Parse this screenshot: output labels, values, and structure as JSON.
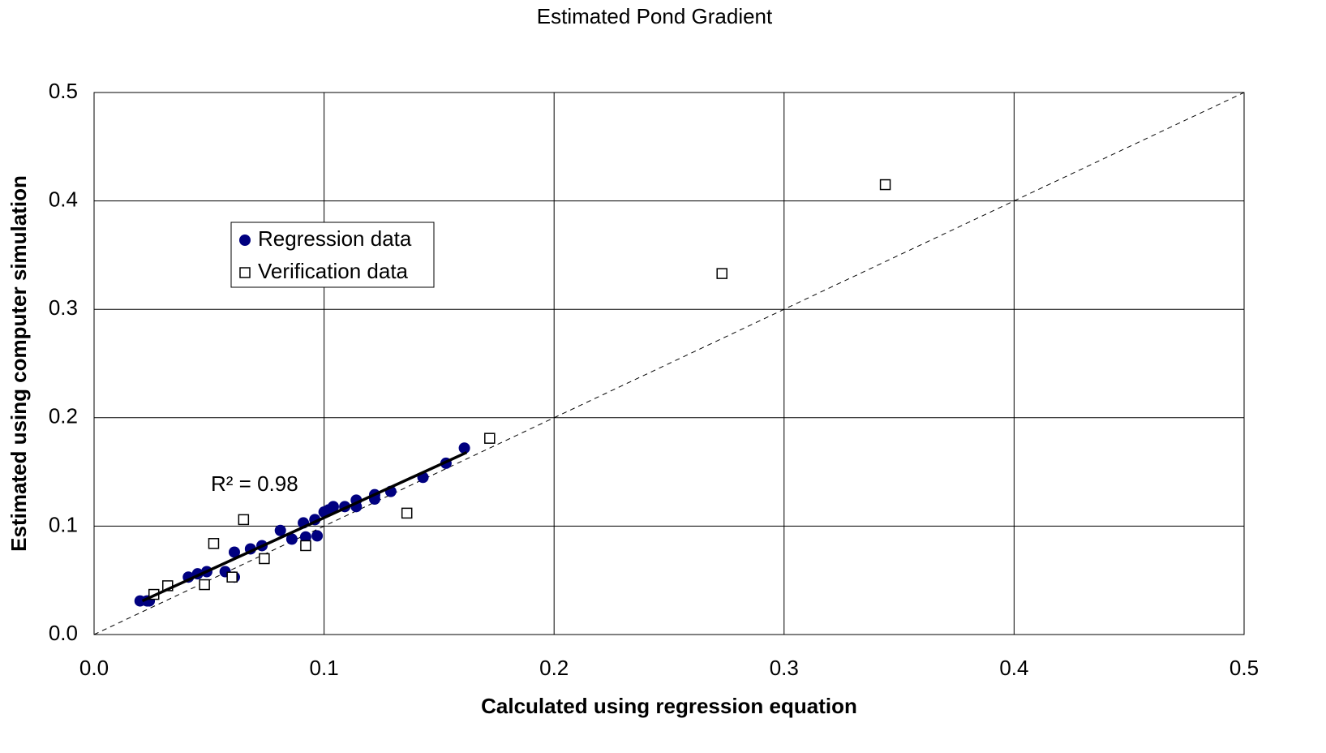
{
  "chart_data": {
    "type": "scatter",
    "title": "Estimated Pond Gradient",
    "x_label": "Calculated using regression equation",
    "y_label": "Estimated using computer simulation",
    "xlim": [
      0,
      0.5
    ],
    "ylim": [
      0,
      0.5
    ],
    "xticks": [
      {
        "value": 0,
        "label": "0.0"
      },
      0.1,
      0.2,
      0.3,
      0.4,
      0.5
    ],
    "yticks": [
      {
        "value": 0,
        "label": "0.0"
      },
      0.1,
      0.2,
      0.3,
      0.4,
      0.5
    ],
    "grid": true,
    "series": [
      {
        "name": "Regression data",
        "color": "#000080",
        "marker": "circle",
        "x": [
          0.02,
          0.023,
          0.024,
          0.041,
          0.045,
          0.049,
          0.057,
          0.061,
          0.061,
          0.068,
          0.073,
          0.081,
          0.086,
          0.091,
          0.092,
          0.096,
          0.097,
          0.1,
          0.102,
          0.104,
          0.109,
          0.114,
          0.114,
          0.122,
          0.122,
          0.129,
          0.143,
          0.153,
          0.161
        ],
        "values": [
          0.031,
          0.031,
          0.031,
          0.053,
          0.056,
          0.058,
          0.058,
          0.076,
          0.053,
          0.079,
          0.082,
          0.096,
          0.088,
          0.103,
          0.09,
          0.106,
          0.091,
          0.113,
          0.115,
          0.118,
          0.118,
          0.124,
          0.118,
          0.129,
          0.125,
          0.132,
          0.145,
          0.158,
          0.172
        ]
      },
      {
        "name": "Verification data",
        "color": "#000000",
        "marker": "square",
        "x": [
          0.026,
          0.032,
          0.048,
          0.052,
          0.06,
          0.065,
          0.074,
          0.092,
          0.136,
          0.172,
          0.273,
          0.344
        ],
        "values": [
          0.037,
          0.045,
          0.046,
          0.084,
          0.053,
          0.106,
          0.07,
          0.082,
          0.112,
          0.181,
          0.333,
          0.415
        ]
      }
    ],
    "trendline": {
      "x": [
        0.021,
        0.162
      ],
      "values": [
        0.031,
        0.168
      ],
      "color": "#000000",
      "label": "R² = 0.98"
    },
    "reference_line": {
      "x": [
        0,
        0.5
      ],
      "values": [
        0,
        0.5
      ],
      "color": "#000000"
    }
  }
}
